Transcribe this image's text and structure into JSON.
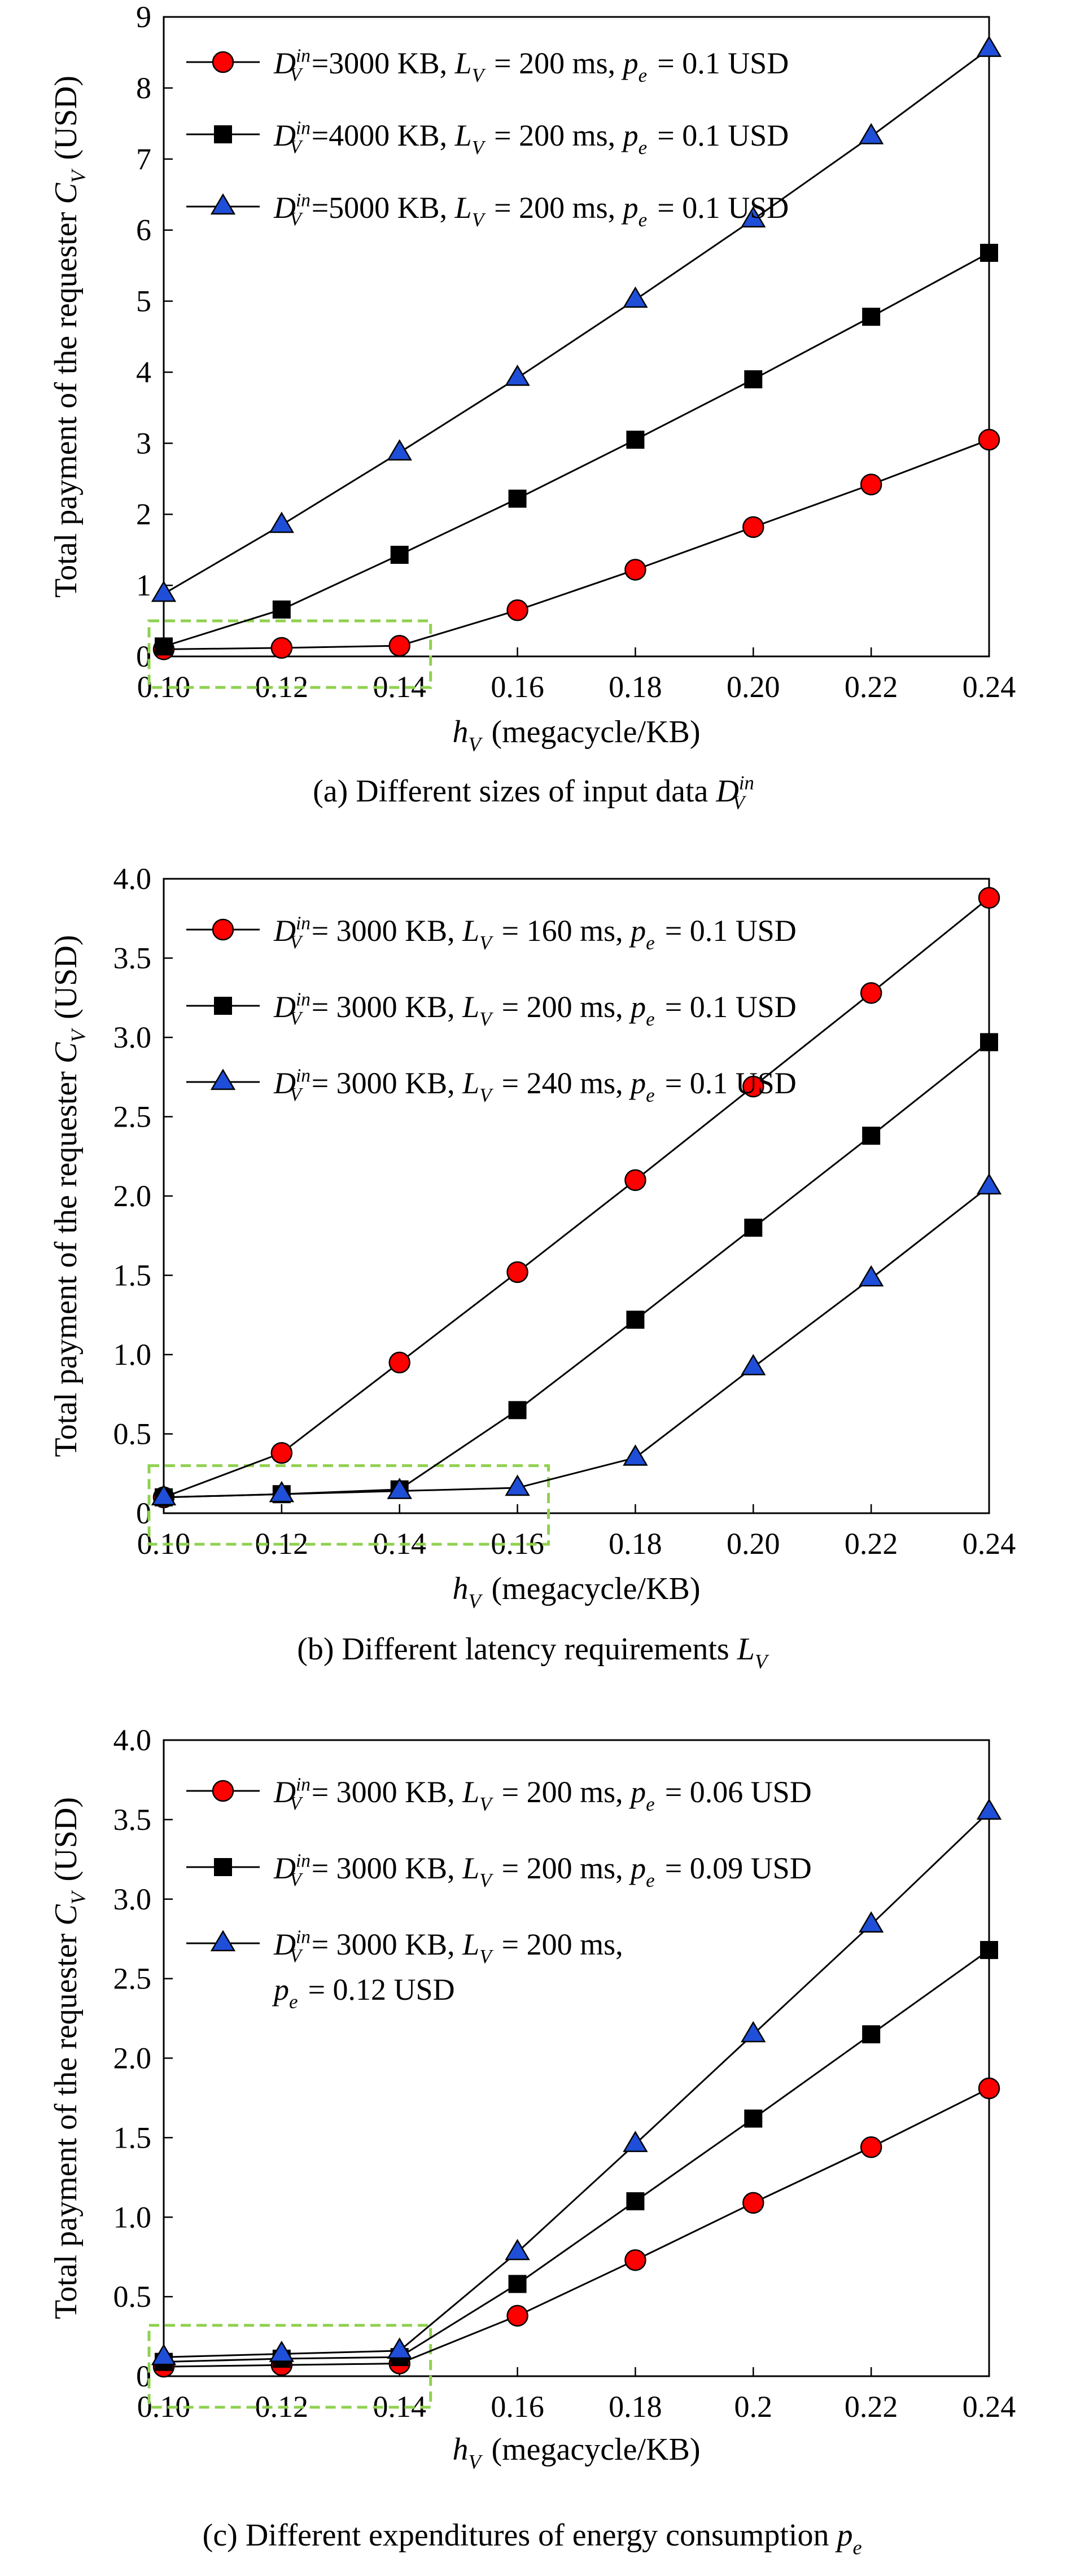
{
  "chart_data": [
    {
      "type": "line",
      "caption": "(a) Different sizes of input data D_V^in",
      "xlabel": "h_V (megacycle/KB)",
      "ylabel": "Total payment of the requester C_V (USD)",
      "xlim": [
        0.1,
        0.24
      ],
      "ylim": [
        0,
        9
      ],
      "x": [
        0.1,
        0.12,
        0.14,
        0.16,
        0.18,
        0.2,
        0.22,
        0.24
      ],
      "x_tick_labels": [
        "0.10",
        "0.12",
        "0.14",
        "0.16",
        "0.18",
        "0.20",
        "0.22",
        "0.24"
      ],
      "y_ticks": [
        0,
        1,
        2,
        3,
        4,
        5,
        6,
        7,
        8,
        9
      ],
      "y_tick_labels": [
        "0",
        "1",
        "2",
        "3",
        "4",
        "5",
        "6",
        "7",
        "8",
        "9"
      ],
      "legend_position": "top-left",
      "grid": false,
      "highlight_box": {
        "x_range": [
          0.1,
          0.14
        ],
        "y_range": [
          0,
          0.5
        ],
        "color": "#8fd14f",
        "style": "dashed"
      },
      "series": [
        {
          "name": "D_V^in =3000 KB, L_V = 200 ms, p_e = 0.1 USD",
          "marker": "circle",
          "color": "#ff0000",
          "values": [
            0.1,
            0.12,
            0.15,
            0.65,
            1.22,
            1.82,
            2.42,
            3.05
          ]
        },
        {
          "name": "D_V^in =4000 KB, L_V = 200 ms, p_e = 0.1 USD",
          "marker": "square",
          "color": "#000000",
          "values": [
            0.14,
            0.66,
            1.43,
            2.22,
            3.05,
            3.9,
            4.78,
            5.68
          ]
        },
        {
          "name": "D_V^in =5000 KB, L_V = 200 ms, p_e = 0.1 USD",
          "marker": "triangle",
          "color": "#1f4fd8",
          "values": [
            0.88,
            1.85,
            2.87,
            3.92,
            5.02,
            6.15,
            7.32,
            8.55
          ]
        }
      ]
    },
    {
      "type": "line",
      "caption": "(b) Different latency requirements L_V",
      "xlabel": "h_V (megacycle/KB)",
      "ylabel": "Total payment of the requester C_V (USD)",
      "xlim": [
        0.1,
        0.24
      ],
      "ylim": [
        0,
        4
      ],
      "x": [
        0.1,
        0.12,
        0.14,
        0.16,
        0.18,
        0.2,
        0.22,
        0.24
      ],
      "x_tick_labels": [
        "0.10",
        "0.12",
        "0.14",
        "0.16",
        "0.18",
        "0.20",
        "0.22",
        "0.24"
      ],
      "y_ticks": [
        0,
        0.5,
        1,
        1.5,
        2,
        2.5,
        3,
        3.5,
        4
      ],
      "y_tick_labels": [
        "0",
        "0.5",
        "1.0",
        "1.5",
        "2.0",
        "2.5",
        "3.0",
        "3.5",
        "4.0"
      ],
      "legend_position": "top-left",
      "grid": false,
      "highlight_box": {
        "x_range": [
          0.1,
          0.16
        ],
        "y_range": [
          0,
          0.3
        ],
        "color": "#8fd14f",
        "style": "dashed"
      },
      "series": [
        {
          "name": "D_V^in = 3000 KB, L_V = 160 ms, p_e = 0.1 USD",
          "marker": "circle",
          "color": "#ff0000",
          "values": [
            0.1,
            0.38,
            0.95,
            1.52,
            2.1,
            2.69,
            3.28,
            3.88
          ]
        },
        {
          "name": "D_V^in = 3000 KB, L_V = 200 ms, p_e = 0.1 USD",
          "marker": "square",
          "color": "#000000",
          "values": [
            0.1,
            0.12,
            0.15,
            0.65,
            1.22,
            1.8,
            2.38,
            2.97
          ]
        },
        {
          "name": "D_V^in = 3000 KB, L_V = 240 ms, p_e = 0.1 USD",
          "marker": "triangle",
          "color": "#1f4fd8",
          "values": [
            0.1,
            0.12,
            0.14,
            0.16,
            0.35,
            0.92,
            1.48,
            2.06
          ]
        }
      ]
    },
    {
      "type": "line",
      "caption": "(c) Different expenditures of energy consumption p_e",
      "xlabel": "h_V (megacycle/KB)",
      "ylabel": "Total payment of the requester C_V (USD)",
      "xlim": [
        0.1,
        0.24
      ],
      "ylim": [
        0,
        4
      ],
      "x": [
        0.1,
        0.12,
        0.14,
        0.16,
        0.18,
        0.2,
        0.22,
        0.24
      ],
      "x_tick_labels": [
        "0.10",
        "0.12",
        "0.14",
        "0.16",
        "0.18",
        "0.2",
        "0.22",
        "0.24"
      ],
      "y_ticks": [
        0,
        0.5,
        1,
        1.5,
        2,
        2.5,
        3,
        3.5,
        4
      ],
      "y_tick_labels": [
        "0",
        "0.5",
        "1.0",
        "1.5",
        "2.0",
        "2.5",
        "3.0",
        "3.5",
        "4.0"
      ],
      "legend_position": "top-left",
      "grid": false,
      "highlight_box": {
        "x_range": [
          0.1,
          0.14
        ],
        "y_range": [
          -0.05,
          0.32
        ],
        "color": "#8fd14f",
        "style": "dashed"
      },
      "series": [
        {
          "name": "D_V^in = 3000 KB, L_V = 200 ms, p_e = 0.06 USD",
          "marker": "circle",
          "color": "#ff0000",
          "values": [
            0.06,
            0.07,
            0.08,
            0.38,
            0.73,
            1.09,
            1.44,
            1.81
          ]
        },
        {
          "name": "D_V^in = 3000 KB, L_V = 200 ms, p_e = 0.09 USD",
          "marker": "square",
          "color": "#000000",
          "values": [
            0.09,
            0.11,
            0.12,
            0.58,
            1.1,
            1.62,
            2.15,
            2.68
          ]
        },
        {
          "name": "D_V^in = 3000 KB, L_V = 200 ms, p_e = 0.12 USD",
          "marker": "triangle",
          "color": "#1f4fd8",
          "values": [
            0.12,
            0.14,
            0.16,
            0.78,
            1.46,
            2.15,
            2.84,
            3.55
          ]
        }
      ]
    }
  ]
}
